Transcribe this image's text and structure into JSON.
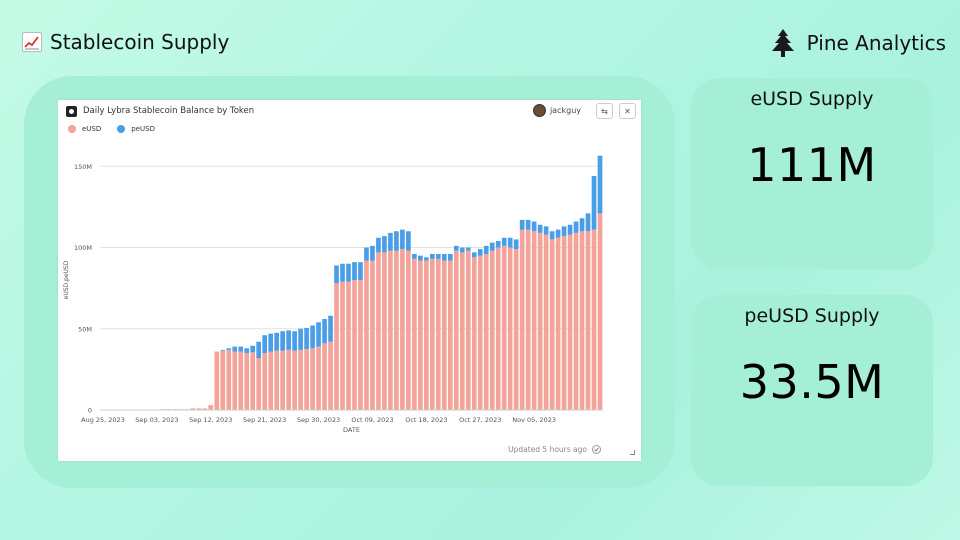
{
  "header": {
    "title": "Stablecoin Supply",
    "brand": "Pine Analytics",
    "title_icon": "chart-increasing-emoji",
    "brand_icon": "pine-tree-logo"
  },
  "card": {
    "title": "Daily Lybra Stablecoin Balance by Token",
    "user": "jackguy",
    "updated": "Updated 5 hours ago"
  },
  "stats": [
    {
      "label": "eUSD Supply",
      "value": "111M"
    },
    {
      "label": "peUSD Supply",
      "value": "33.5M"
    }
  ],
  "chart_data": {
    "type": "bar",
    "stacked": true,
    "xlabel": "DATE",
    "ylabel": "eUSD,peUSD",
    "ylim": [
      0,
      160
    ],
    "yticks": [
      0,
      50,
      100,
      150
    ],
    "ytick_labels": [
      "0",
      "50M",
      "100M",
      "150M"
    ],
    "x_tick_labels": [
      "Aug 25, 2023",
      "Sep 03, 2023",
      "Sep 12, 2023",
      "Sep 21, 2023",
      "Sep 30, 2023",
      "Oct 09, 2023",
      "Oct 18, 2023",
      "Oct 27, 2023",
      "Nov 05, 2023"
    ],
    "x_tick_indices": [
      0,
      9,
      18,
      27,
      36,
      45,
      54,
      63,
      72
    ],
    "colors": {
      "eUSD": "#f4a39b",
      "peUSD": "#4a9ee8"
    },
    "grid": true,
    "legend_position": "top-left",
    "series": [
      {
        "name": "eUSD",
        "values": [
          0,
          0,
          0,
          0,
          0,
          0,
          0,
          0,
          0,
          0,
          0.5,
          0.5,
          0.5,
          0.5,
          0.5,
          1,
          1,
          1,
          3,
          36,
          36.5,
          37,
          36,
          36,
          35,
          35.5,
          32,
          35,
          36,
          36.5,
          36.5,
          37,
          36.5,
          37,
          37.5,
          38,
          39,
          41,
          42,
          78,
          79,
          79,
          80,
          80,
          92,
          92,
          97,
          97,
          98,
          98,
          99,
          98,
          93,
          92,
          92,
          93,
          93,
          92,
          92,
          98,
          97,
          98,
          94,
          95,
          96,
          98,
          100,
          101,
          100,
          99,
          111,
          111,
          110,
          109,
          108,
          105,
          106,
          107,
          108,
          109,
          110,
          110,
          111,
          121
        ]
      },
      {
        "name": "peUSD",
        "values": [
          0,
          0,
          0,
          0,
          0,
          0,
          0,
          0,
          0,
          0,
          0,
          0,
          0,
          0,
          0,
          0,
          0,
          0,
          0,
          0,
          0.5,
          1,
          3,
          3,
          3,
          4,
          10,
          11,
          11,
          11,
          12,
          12,
          12,
          13,
          13,
          14,
          15,
          15,
          16,
          11,
          11,
          11,
          11,
          11,
          8,
          9,
          9,
          10,
          11,
          12,
          12,
          12,
          3,
          3,
          2,
          3,
          3,
          4,
          4,
          3,
          3,
          2,
          3,
          4,
          5,
          5,
          4,
          5,
          6,
          6,
          6,
          6,
          6,
          5,
          5,
          5,
          5,
          6,
          6,
          7,
          8,
          11,
          33,
          35.5
        ]
      }
    ]
  }
}
